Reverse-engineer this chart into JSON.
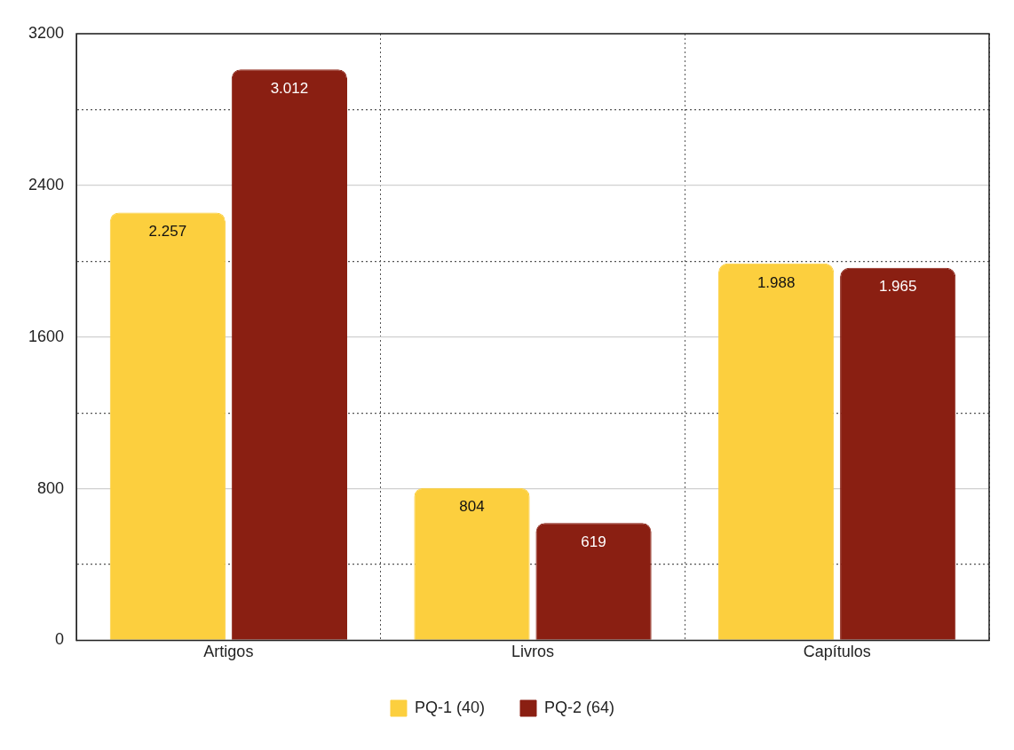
{
  "chart_data": {
    "type": "bar",
    "categories": [
      "Artigos",
      "Livros",
      "Capítulos"
    ],
    "series": [
      {
        "name": "PQ-1 (40)",
        "color": "#fccf3e",
        "values": [
          2257,
          804,
          1988
        ],
        "value_labels": [
          "2.257",
          "804",
          "1.988"
        ]
      },
      {
        "name": "PQ-2 (64)",
        "color": "#8a1f12",
        "values": [
          3012,
          619,
          1965
        ],
        "value_labels": [
          "3.012",
          "619",
          "1.965"
        ]
      }
    ],
    "ylim": [
      0,
      3200
    ],
    "yticks": [
      0,
      {
        "value": 400,
        "label": null
      },
      800,
      {
        "value": 1200,
        "label": null
      },
      1600,
      {
        "value": 2000,
        "label": null
      },
      2400,
      {
        "value": 2800,
        "label": null
      },
      3200
    ],
    "grid": true,
    "legend": "bottom"
  }
}
